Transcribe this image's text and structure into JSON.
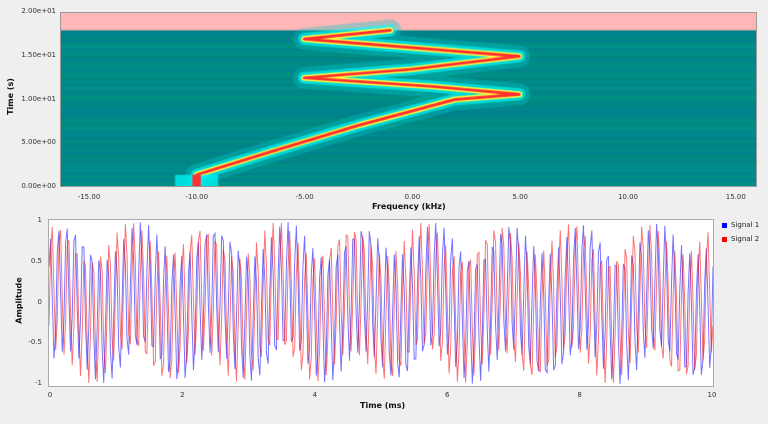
{
  "waterfall": {
    "ylabel": "Time (s)",
    "xlabel": "Frequency (kHz)",
    "yticks": [
      "2.00e+01",
      "1.50e+01",
      "1.00e+01",
      "5.00e+00",
      "0.00e+00"
    ],
    "xticks": [
      "-15.00",
      "-10.00",
      "-5.00",
      "0.00",
      "5.00",
      "10.00",
      "15.00"
    ]
  },
  "timeplot": {
    "ylabel": "Amplitude",
    "xlabel": "Time (ms)",
    "yticks": [
      "1",
      "0.5",
      "0",
      "-0.5",
      "-1"
    ],
    "xticks": [
      "0",
      "2",
      "4",
      "6",
      "8",
      "10"
    ],
    "legend": [
      {
        "label": "Signal 1",
        "color": "#0000ff"
      },
      {
        "label": "Signal 2",
        "color": "#ff0000"
      }
    ]
  },
  "chart_data": [
    {
      "type": "heatmap",
      "title": "",
      "xlabel": "Frequency (kHz)",
      "ylabel": "Time (s)",
      "xlim": [
        -16.3,
        16
      ],
      "ylim": [
        0,
        20
      ],
      "trace": {
        "t": [
          0,
          1.3,
          4,
          7,
          10,
          10.6,
          11.5,
          12.5,
          13.5,
          15,
          16,
          17,
          18
        ],
        "f": [
          -10,
          -10,
          -6.5,
          -2.5,
          2,
          5,
          1,
          -5,
          0,
          5,
          0,
          -5,
          -1
        ]
      }
    },
    {
      "type": "line",
      "xlabel": "Time (ms)",
      "ylabel": "Amplitude",
      "xlim": [
        0,
        10
      ],
      "ylim": [
        -1,
        1
      ],
      "series": [
        {
          "name": "Signal 1",
          "freq_khz": 8.1,
          "phase": 0.6
        },
        {
          "name": "Signal 2",
          "freq_khz": 8.1,
          "phase": -0.6
        }
      ]
    }
  ]
}
